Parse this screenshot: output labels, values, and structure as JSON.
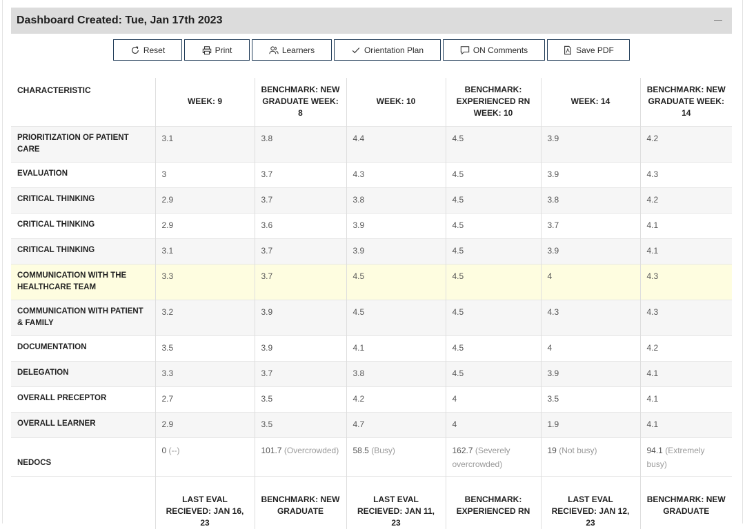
{
  "header": {
    "title": "Dashboard Created: Tue, Jan 17th 2023"
  },
  "toolbar": {
    "reset": "Reset",
    "print": "Print",
    "learners": "Learners",
    "orientation_plan": "Orientation Plan",
    "on_comments": "ON Comments",
    "save_pdf": "Save PDF"
  },
  "table": {
    "columns": [
      "CHARACTERISTIC",
      "WEEK: 9",
      "BENCHMARK: NEW GRADUATE WEEK: 8",
      "WEEK: 10",
      "BENCHMARK: EXPERIENCED RN WEEK: 10",
      "WEEK: 14",
      "BENCHMARK: NEW GRADUATE WEEK: 14"
    ],
    "rows": [
      {
        "label": "PRIORITIZATION OF PATIENT CARE",
        "values": [
          "3.1",
          "3.8",
          "4.4",
          "4.5",
          "3.9",
          "4.2"
        ]
      },
      {
        "label": "EVALUATION",
        "values": [
          "3",
          "3.7",
          "4.3",
          "4.5",
          "3.9",
          "4.3"
        ]
      },
      {
        "label": "CRITICAL THINKING",
        "values": [
          "2.9",
          "3.7",
          "3.8",
          "4.5",
          "3.8",
          "4.2"
        ]
      },
      {
        "label": "CRITICAL THINKING",
        "values": [
          "2.9",
          "3.6",
          "3.9",
          "4.5",
          "3.7",
          "4.1"
        ]
      },
      {
        "label": "CRITICAL THINKING",
        "values": [
          "3.1",
          "3.7",
          "3.9",
          "4.5",
          "3.9",
          "4.1"
        ]
      },
      {
        "label": "COMMUNICATION WITH THE HEALTHCARE TEAM",
        "values": [
          "3.3",
          "3.7",
          "4.5",
          "4.5",
          "4",
          "4.3"
        ]
      },
      {
        "label": "COMMUNICATION WITH PATIENT & FAMILY",
        "values": [
          "3.2",
          "3.9",
          "4.5",
          "4.5",
          "4.3",
          "4.3"
        ]
      },
      {
        "label": "DOCUMENTATION",
        "values": [
          "3.5",
          "3.9",
          "4.1",
          "4.5",
          "4",
          "4.2"
        ]
      },
      {
        "label": "DELEGATION",
        "values": [
          "3.3",
          "3.7",
          "3.8",
          "4.5",
          "3.9",
          "4.1"
        ]
      },
      {
        "label": "OVERALL PRECEPTOR",
        "values": [
          "2.7",
          "3.5",
          "4.2",
          "4",
          "3.5",
          "4.1"
        ]
      },
      {
        "label": "OVERALL LEARNER",
        "values": [
          "2.9",
          "3.5",
          "4.7",
          "4",
          "1.9",
          "4.1"
        ]
      }
    ],
    "nedocs": {
      "label": "NEDOCS",
      "values": [
        {
          "value": "0",
          "status": "(--)"
        },
        {
          "value": "101.7",
          "status": "(Overcrowded)"
        },
        {
          "value": "58.5",
          "status": "(Busy)"
        },
        {
          "value": "162.7",
          "status": "(Severely overcrowded)"
        },
        {
          "value": "19",
          "status": "(Not busy)"
        },
        {
          "value": "94.1",
          "status": "(Extremely busy)"
        }
      ]
    },
    "footer": [
      "LAST EVAL RECIEVED: JAN 16, 23",
      "BENCHMARK: NEW GRADUATE",
      "LAST EVAL RECIEVED: JAN 11, 23",
      "BENCHMARK: EXPERIENCED RN",
      "LAST EVAL RECIEVED: JAN 12, 23",
      "BENCHMARK: NEW GRADUATE"
    ]
  }
}
